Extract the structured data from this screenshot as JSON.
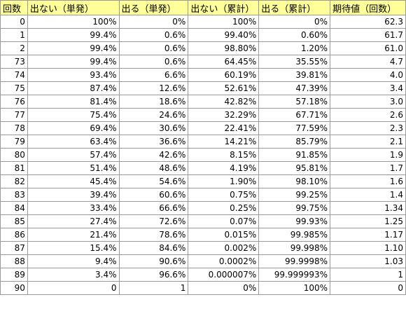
{
  "headers": [
    "回数",
    "出ない（単発）",
    "出る（単発）",
    "出ない（累計）",
    "出る（累計）",
    "期待値（回数）"
  ],
  "rows": [
    [
      "0",
      "100%",
      "0%",
      "100%",
      "0%",
      "62.3"
    ],
    [
      "1",
      "99.4%",
      "0.6%",
      "99.40%",
      "0.60%",
      "61.7"
    ],
    [
      "2",
      "99.4%",
      "0.6%",
      "98.80%",
      "1.20%",
      "61.0"
    ],
    [
      "73",
      "99.4%",
      "0.6%",
      "64.45%",
      "35.55%",
      "4.7"
    ],
    [
      "74",
      "93.4%",
      "6.6%",
      "60.19%",
      "39.81%",
      "4.0"
    ],
    [
      "75",
      "87.4%",
      "12.6%",
      "52.61%",
      "47.39%",
      "3.4"
    ],
    [
      "76",
      "81.4%",
      "18.6%",
      "42.82%",
      "57.18%",
      "3.0"
    ],
    [
      "77",
      "75.4%",
      "24.6%",
      "32.29%",
      "67.71%",
      "2.6"
    ],
    [
      "78",
      "69.4%",
      "30.6%",
      "22.41%",
      "77.59%",
      "2.3"
    ],
    [
      "79",
      "63.4%",
      "36.6%",
      "14.21%",
      "85.79%",
      "2.1"
    ],
    [
      "80",
      "57.4%",
      "42.6%",
      "8.15%",
      "91.85%",
      "1.9"
    ],
    [
      "81",
      "51.4%",
      "48.6%",
      "4.19%",
      "95.81%",
      "1.7"
    ],
    [
      "82",
      "45.4%",
      "54.6%",
      "1.90%",
      "98.10%",
      "1.6"
    ],
    [
      "83",
      "39.4%",
      "60.6%",
      "0.75%",
      "99.25%",
      "1.4"
    ],
    [
      "84",
      "33.4%",
      "66.6%",
      "0.25%",
      "99.75%",
      "1.34"
    ],
    [
      "85",
      "27.4%",
      "72.6%",
      "0.07%",
      "99.93%",
      "1.25"
    ],
    [
      "86",
      "21.4%",
      "78.6%",
      "0.015%",
      "99.985%",
      "1.17"
    ],
    [
      "87",
      "15.4%",
      "84.6%",
      "0.002%",
      "99.998%",
      "1.10"
    ],
    [
      "88",
      "9.4%",
      "90.6%",
      "0.0002%",
      "99.9998%",
      "1.03"
    ],
    [
      "89",
      "3.4%",
      "96.6%",
      "0.000007%",
      "99.999993%",
      "1"
    ],
    [
      "90",
      "0",
      "1",
      "0%",
      "100%",
      "0"
    ]
  ]
}
